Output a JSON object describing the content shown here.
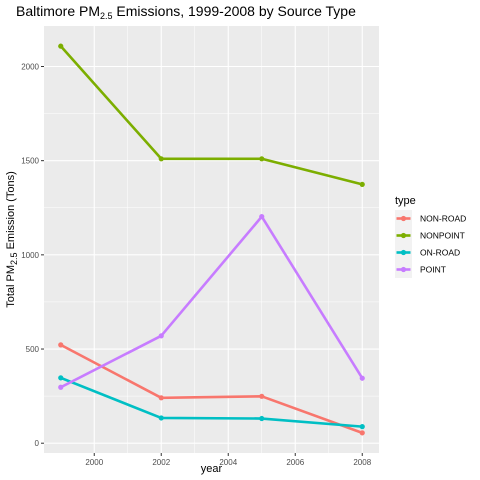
{
  "chart_data": {
    "type": "line",
    "title_main": "Baltimore PM",
    "title_sub": "2.5",
    "title_rest": " Emissions, 1999-2008 by Source Type",
    "xlabel": "year",
    "ylabel_main": "Total PM",
    "ylabel_sub": "2.5",
    "ylabel_rest": " Emission (Tons)",
    "legend_title": "type",
    "legend_position": "right",
    "grid": true,
    "x": [
      1999,
      2002,
      2005,
      2008
    ],
    "xlim": [
      1998.5,
      2008.5
    ],
    "ylim": [
      -52,
      2215
    ],
    "x_ticks": [
      2000,
      2002,
      2004,
      2006,
      2008
    ],
    "y_ticks": [
      0,
      500,
      1000,
      1500,
      2000
    ],
    "series": [
      {
        "name": "NON-ROAD",
        "color": "#F8766D",
        "values": [
          522,
          241,
          249,
          55
        ]
      },
      {
        "name": "NONPOINT",
        "color": "#7CAE00",
        "values": [
          2108,
          1510,
          1510,
          1374
        ]
      },
      {
        "name": "ON-ROAD",
        "color": "#00BFC4",
        "values": [
          347,
          134,
          131,
          88
        ]
      },
      {
        "name": "POINT",
        "color": "#C77CFF",
        "values": [
          297,
          570,
          1203,
          345
        ]
      }
    ]
  }
}
